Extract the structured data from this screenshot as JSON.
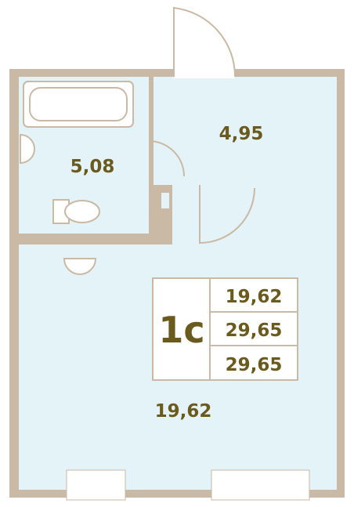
{
  "rooms": [
    {
      "area": "5,08"
    },
    {
      "area": "4,95"
    },
    {
      "area": "19,62"
    }
  ],
  "info": {
    "label": "1с",
    "values": [
      "19,62",
      "29,65",
      "29,65"
    ]
  }
}
